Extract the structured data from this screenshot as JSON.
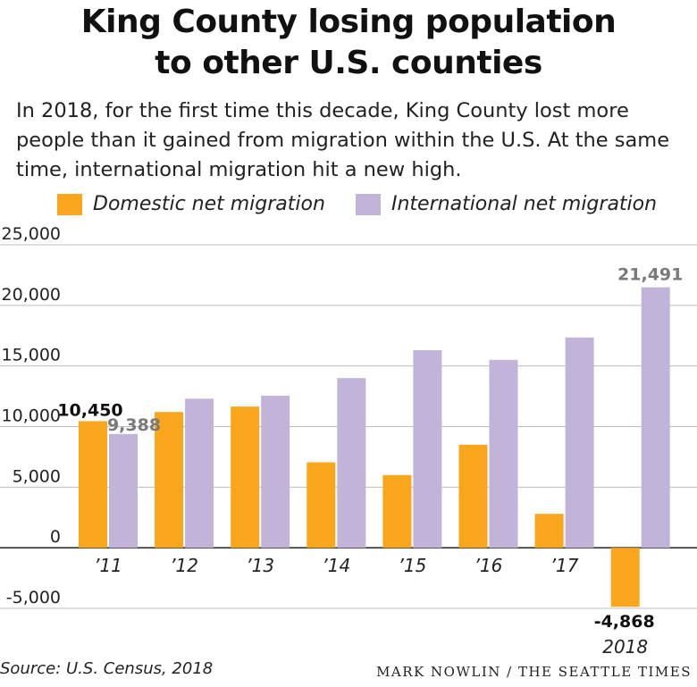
{
  "title_line1": "King County losing population",
  "title_line2": "to other U.S. counties",
  "subtitle": "In 2018, for the first time this decade, King County lost more people than it gained from migration within the U.S. At the same time, international migration hit a new high.",
  "source": "Source: U.S. Census, 2018",
  "credit": "MARK NOWLIN / THE SEATTLE TIMES",
  "colors": {
    "domestic": "#f9a61c",
    "international": "#c2b3d8",
    "label_gray": "#7a7a7a"
  },
  "chart_data": {
    "type": "bar",
    "categories": [
      "’11",
      "’12",
      "’13",
      "’14",
      "’15",
      "’16",
      "’17",
      "2018"
    ],
    "series": [
      {
        "name": "Domestic net migration",
        "values": [
          10450,
          11200,
          11650,
          7050,
          6000,
          8500,
          2800,
          -4868
        ]
      },
      {
        "name": "International net migration",
        "values": [
          9388,
          12300,
          12550,
          14000,
          16300,
          15500,
          17350,
          21491
        ]
      }
    ],
    "ylim": [
      -5000,
      25000
    ],
    "yticks": [
      {
        "value": 25000,
        "label": "25,000"
      },
      {
        "value": 20000,
        "label": "20,000"
      },
      {
        "value": 15000,
        "label": "15,000"
      },
      {
        "value": 10000,
        "label": "10,000"
      },
      {
        "value": 5000,
        "label": "5,000"
      },
      {
        "value": 0,
        "label": "0"
      },
      {
        "value": -5000,
        "label": "-5,000"
      }
    ],
    "annotations": [
      {
        "series": 0,
        "index": 0,
        "text": "10,450"
      },
      {
        "series": 1,
        "index": 0,
        "text": "9,388"
      },
      {
        "series": 1,
        "index": 7,
        "text": "21,491"
      },
      {
        "series": 0,
        "index": 7,
        "text": "-4,868"
      }
    ],
    "legend": "top",
    "grid": true
  }
}
